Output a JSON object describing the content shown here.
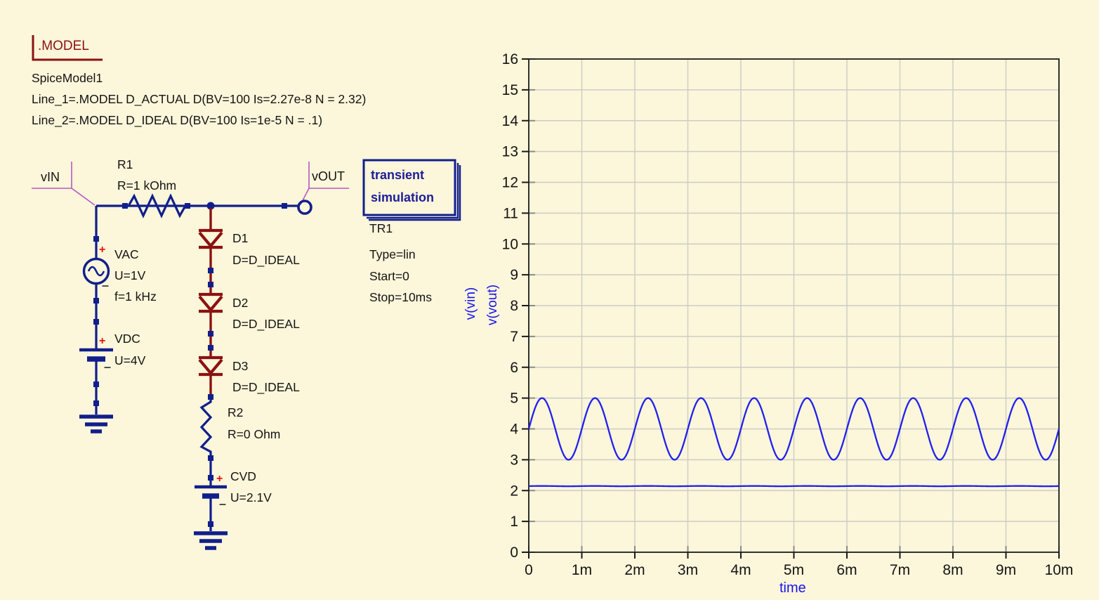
{
  "model_block": {
    "title": ".MODEL",
    "instance_name": "SpiceModel1",
    "line1": "Line_1=.MODEL D_ACTUAL D(BV=100 Is=2.27e-8 N = 2.32)",
    "line2": "Line_2=.MODEL D_IDEAL D(BV=100 Is=1e-5 N = .1)"
  },
  "schematic": {
    "node_labels": {
      "vin": "vIN",
      "vout": "vOUT"
    },
    "components": {
      "r1": {
        "name": "R1",
        "value": "R=1 kOhm"
      },
      "vac": {
        "name": "VAC",
        "value": "U=1V",
        "value2": "f=1 kHz",
        "plus": "+",
        "minus": "–"
      },
      "vdc": {
        "name": "VDC",
        "value": "U=4V",
        "plus": "+",
        "minus": "–"
      },
      "d1": {
        "name": "D1",
        "value": "D=D_IDEAL"
      },
      "d2": {
        "name": "D2",
        "value": "D=D_IDEAL"
      },
      "d3": {
        "name": "D3",
        "value": "D=D_IDEAL"
      },
      "r2": {
        "name": "R2",
        "value": "R=0 Ohm"
      },
      "cvd": {
        "name": "CVD",
        "value": "U=2.1V",
        "plus": "+",
        "minus": "–"
      }
    },
    "sim_box": {
      "line1": "transient",
      "line2": "simulation"
    },
    "sim_props": {
      "name": "TR1",
      "type": "Type=lin",
      "start": "Start=0",
      "stop": "Stop=10ms"
    }
  },
  "colors": {
    "background": "#FCF6DA",
    "wire_navy": "#101F8C",
    "diode_red": "#8B1212",
    "model_red": "#8B1212",
    "label_purple": "#B35AC2",
    "curve_blue": "#2020EE",
    "axis_label_blue": "#1515EF",
    "grid_gray": "#CCCCC6",
    "plus_red": "#E81010"
  },
  "chart_data": {
    "type": "line",
    "title": "",
    "xlabel": "time",
    "ylabel_series": [
      "v(vin)",
      "v(vout)"
    ],
    "x_ticks": [
      "0",
      "1m",
      "2m",
      "3m",
      "4m",
      "5m",
      "6m",
      "7m",
      "8m",
      "9m",
      "10m"
    ],
    "x_tick_values_ms": [
      0,
      1,
      2,
      3,
      4,
      5,
      6,
      7,
      8,
      9,
      10
    ],
    "xlim_ms": [
      0,
      10
    ],
    "y_ticks": [
      "0",
      "1",
      "2",
      "3",
      "4",
      "5",
      "6",
      "7",
      "8",
      "9",
      "10",
      "11",
      "12",
      "13",
      "14",
      "15",
      "16"
    ],
    "ylim": [
      0,
      16
    ],
    "grid": true,
    "legend_position": "left-axis-rotated",
    "curve_color": "#2020EE",
    "series": [
      {
        "name": "v(vin)",
        "shape": "sine",
        "offset": 4,
        "amplitude": 1,
        "cycles": 10,
        "min": 3,
        "max": 5,
        "frequency_hz": 1000,
        "note": "sine 3..5 V, 10 periods over 10 ms"
      },
      {
        "name": "v(vout)",
        "shape": "flat",
        "value": 2.15,
        "ripple": 0.01,
        "note": "clamped output, approximately constant 2.15 V"
      }
    ]
  }
}
